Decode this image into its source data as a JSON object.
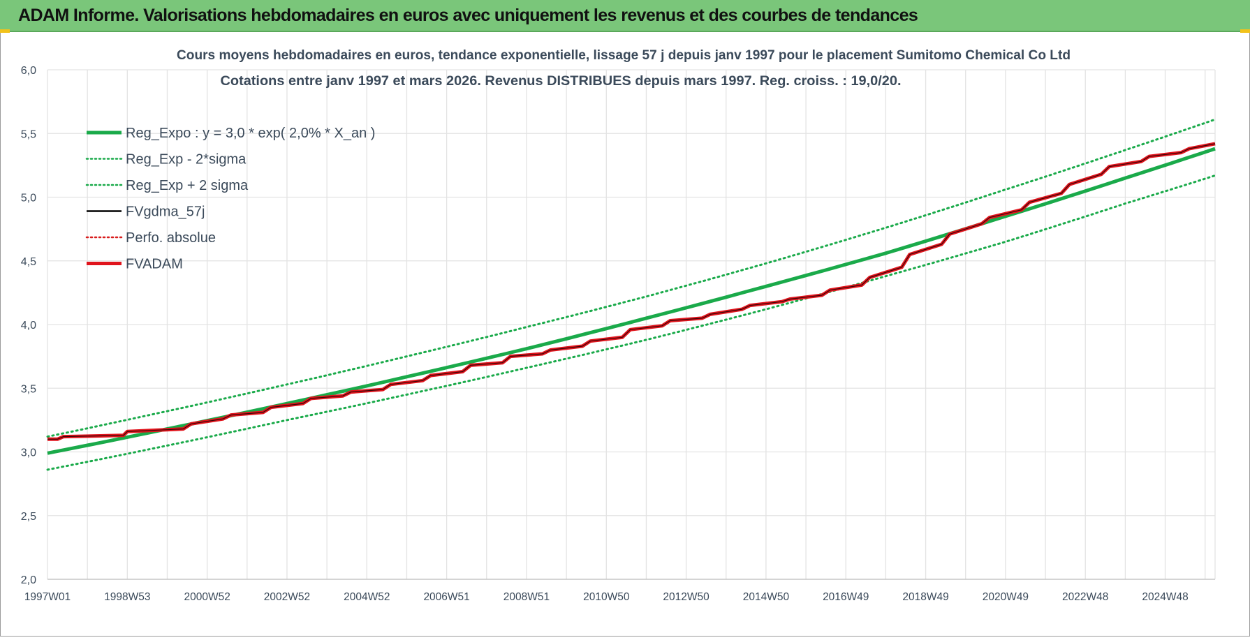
{
  "banner": {
    "title": "ADAM Informe. Valorisations hebdomadaires en euros avec uniquement les revenus et des courbes de tendances"
  },
  "colors": {
    "banner_bg": "#7ac67a",
    "trend": "#1aaa4a",
    "band": "#1aaa4a",
    "fvgdma": "#000000",
    "perfo": "#d81e1e",
    "fvadam": "#e0141c",
    "grid": "#e3e3e3",
    "axis_text": "#3b4a5a"
  },
  "chart_data": {
    "type": "line",
    "title": "Cours moyens hebdomadaires en euros, tendance exponentielle, lissage 57 j depuis janv 1997 pour le placement Sumitomo Chemical Co Ltd",
    "subtitle": "Cotations entre janv 1997 et mars 2026. Revenus DISTRIBUES depuis mars 1997. Reg. croiss. : 19,0/20.",
    "ylim": [
      2.0,
      6.0
    ],
    "yticks": [
      "2,0",
      "2,5",
      "3,0",
      "3,5",
      "4,0",
      "4,5",
      "5,0",
      "5,5",
      "6,0"
    ],
    "x_tick_labels": [
      "1997W01",
      "1998W53",
      "2000W52",
      "2002W52",
      "2004W52",
      "2006W51",
      "2008W51",
      "2010W50",
      "2012W50",
      "2014W50",
      "2016W49",
      "2018W49",
      "2020W49",
      "2022W48",
      "2024W48"
    ],
    "x_range_years": [
      1997.0,
      2026.25
    ],
    "grid": true,
    "legend_position": "top-left",
    "legend": [
      {
        "label": "Reg_Expo : y = 3,0 * exp( 2,0% *  X_an )",
        "style": "solid-thick",
        "color": "#1aaa4a"
      },
      {
        "label": "Reg_Exp - 2*sigma",
        "style": "dotted",
        "color": "#1aaa4a"
      },
      {
        "label": "Reg_Exp + 2 sigma",
        "style": "dotted",
        "color": "#1aaa4a"
      },
      {
        "label": "FVgdma_57j",
        "style": "solid",
        "color": "#000000"
      },
      {
        "label": "Perfo. absolue",
        "style": "dotted",
        "color": "#d81e1e"
      },
      {
        "label": "FVADAM",
        "style": "solid-thick",
        "color": "#e0141c"
      }
    ],
    "series": [
      {
        "name": "Reg_Expo : y = 3,0 * exp( 2,0% *  X_an )",
        "x": [
          1997,
          2000,
          2003,
          2006,
          2009,
          2012,
          2015,
          2018,
          2021,
          2024,
          2026.25
        ],
        "values": [
          2.99,
          3.18,
          3.38,
          3.59,
          3.81,
          4.05,
          4.3,
          4.56,
          4.85,
          5.15,
          5.38
        ]
      },
      {
        "name": "Reg_Exp - 2*sigma",
        "x": [
          1997,
          2000,
          2003,
          2006,
          2009,
          2012,
          2015,
          2018,
          2021,
          2024,
          2026.25
        ],
        "values": [
          2.86,
          3.05,
          3.25,
          3.45,
          3.66,
          3.88,
          4.12,
          4.38,
          4.65,
          4.95,
          5.17
        ]
      },
      {
        "name": "Reg_Exp + 2 sigma",
        "x": [
          1997,
          2000,
          2003,
          2006,
          2009,
          2012,
          2015,
          2018,
          2021,
          2024,
          2026.25
        ],
        "values": [
          3.12,
          3.32,
          3.53,
          3.75,
          3.98,
          4.22,
          4.48,
          4.76,
          5.06,
          5.37,
          5.61
        ]
      },
      {
        "name": "FVADAM",
        "x": [
          1997.0,
          1997.25,
          1997.4,
          1998.9,
          1999.0,
          2000.4,
          2000.6,
          2001.4,
          2001.6,
          2002.4,
          2002.6,
          2003.4,
          2003.6,
          2004.4,
          2004.6,
          2005.4,
          2005.6,
          2006.4,
          2006.6,
          2007.4,
          2007.6,
          2008.4,
          2008.6,
          2009.4,
          2009.6,
          2010.4,
          2010.6,
          2011.4,
          2011.6,
          2012.4,
          2012.6,
          2013.4,
          2013.6,
          2014.4,
          2014.6,
          2015.4,
          2015.6,
          2016.4,
          2016.6,
          2017.4,
          2017.6,
          2018.4,
          2018.6,
          2019.4,
          2019.6,
          2020.4,
          2020.6,
          2021.4,
          2021.6,
          2022.4,
          2022.6,
          2023.4,
          2023.6,
          2024.4,
          2024.6,
          2025.4,
          2025.6,
          2026.25
        ],
        "values": [
          3.1,
          3.1,
          3.12,
          3.13,
          3.16,
          3.18,
          3.22,
          3.26,
          3.29,
          3.31,
          3.35,
          3.38,
          3.42,
          3.44,
          3.47,
          3.49,
          3.53,
          3.56,
          3.6,
          3.63,
          3.68,
          3.7,
          3.75,
          3.77,
          3.8,
          3.83,
          3.87,
          3.9,
          3.96,
          3.99,
          4.03,
          4.05,
          4.08,
          4.12,
          4.15,
          4.18,
          4.2,
          4.23,
          4.27,
          4.31,
          4.37,
          4.45,
          4.55,
          4.63,
          4.71,
          4.79,
          4.84,
          4.9,
          4.96,
          5.03,
          5.1,
          5.18,
          5.24,
          5.28,
          5.32,
          5.35,
          5.38,
          5.42
        ]
      },
      {
        "name": "FVgdma_57j",
        "x": [
          1997.0,
          1998.9,
          2000.6,
          2002.6,
          2004.6,
          2006.6,
          2008.6,
          2010.6,
          2012.6,
          2014.6,
          2016.6,
          2018.6,
          2020.6,
          2022.6,
          2024.6,
          2026.25
        ],
        "values": [
          3.1,
          3.14,
          3.24,
          3.34,
          3.45,
          3.57,
          3.71,
          3.84,
          4.04,
          4.14,
          4.25,
          4.55,
          4.83,
          5.12,
          5.33,
          5.42
        ]
      }
    ]
  }
}
